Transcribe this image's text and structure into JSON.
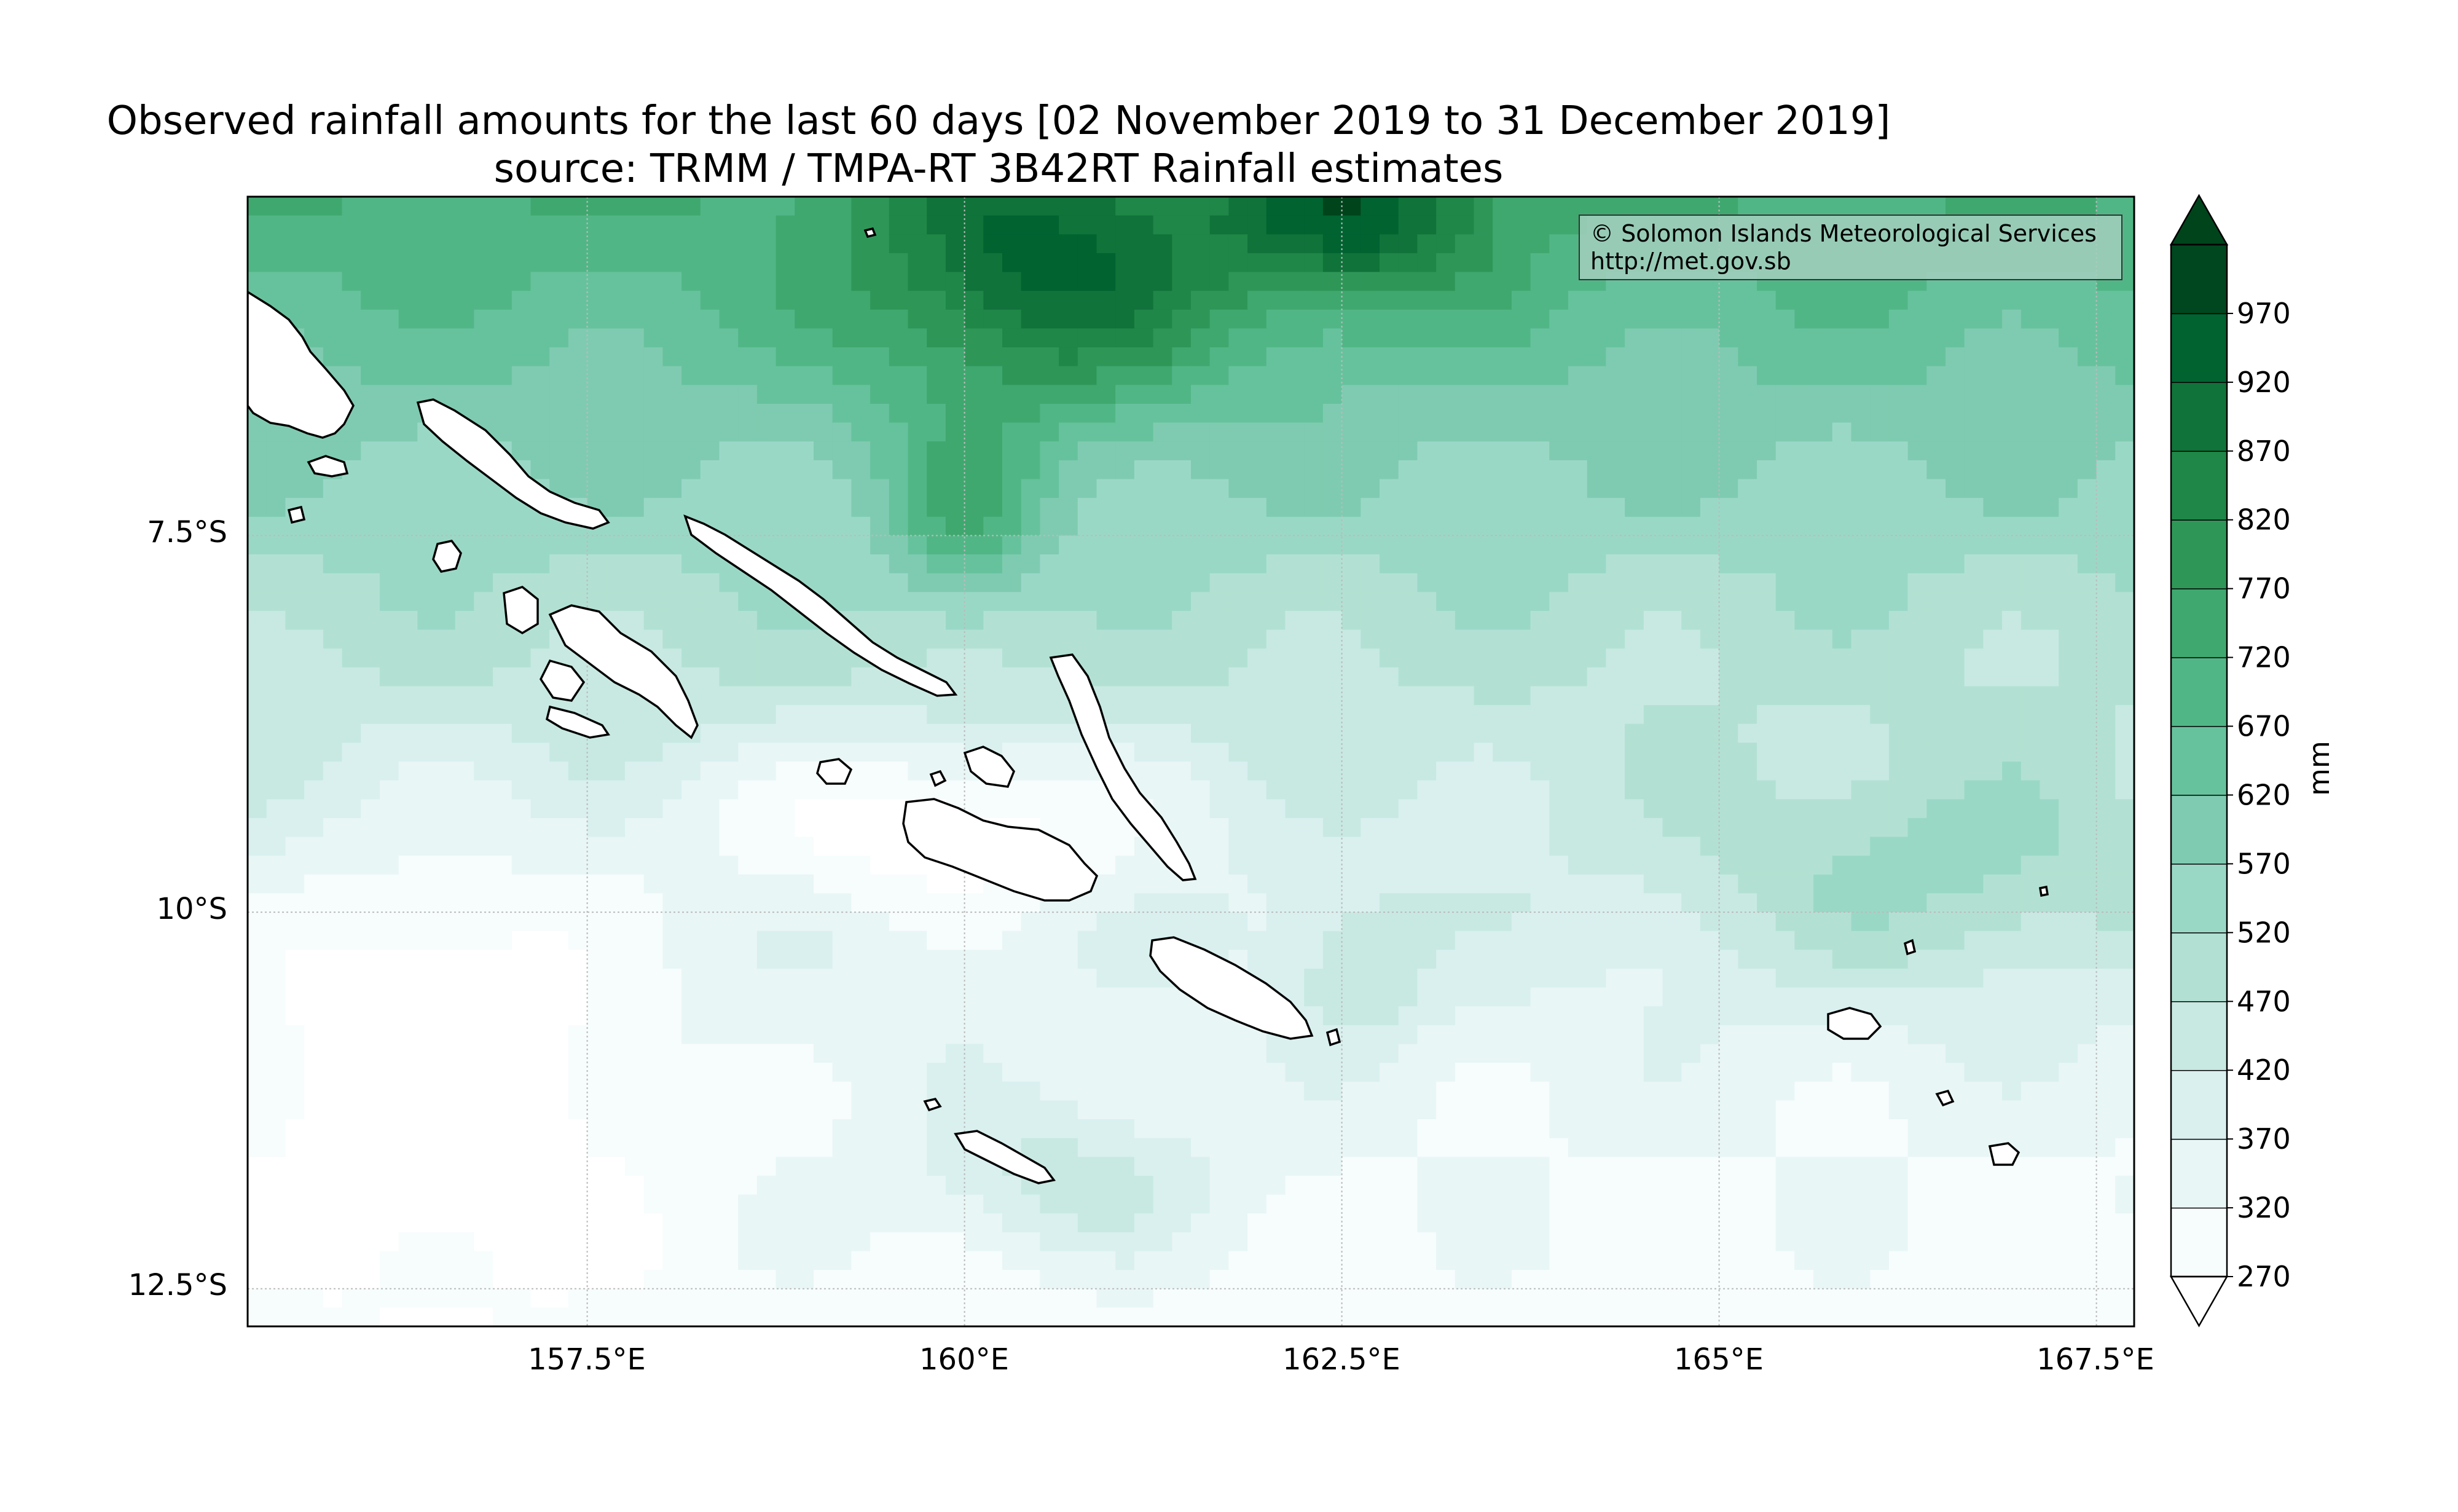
{
  "title": {
    "line1": "Observed rainfall amounts for the last 60 days [02 November 2019 to 31 December 2019]",
    "line2": "source: TRMM / TMPA-RT 3B42RT Rainfall estimates"
  },
  "credit": {
    "line1": "© Solomon Islands Meteorological Services",
    "line2": "http://met.gov.sb"
  },
  "axes": {
    "lat_ticks": [
      "7.5°S",
      "10°S",
      "12.5°S"
    ],
    "lon_ticks": [
      "157.5°E",
      "160°E",
      "162.5°E",
      "165°E",
      "167.5°E"
    ]
  },
  "colorbar": {
    "unit": "mm",
    "levels": [
      "270",
      "320",
      "370",
      "420",
      "470",
      "520",
      "570",
      "620",
      "670",
      "720",
      "770",
      "820",
      "870",
      "920",
      "970"
    ],
    "colors": [
      "#f7fcfd",
      "#e8f6f5",
      "#d9f0ef",
      "#c8e9e2",
      "#b2e1d3",
      "#9ad8c6",
      "#7fcbb1",
      "#66c29d",
      "#51b686",
      "#3fa86f",
      "#2e9758",
      "#1f8748",
      "#10733a",
      "#006330",
      "#00461f"
    ],
    "over_color": "#00441b",
    "under_color": "#ffffff"
  },
  "map": {
    "type": "filled-contour",
    "lon_range": [
      155.25,
      167.75
    ],
    "lat_range": [
      -12.75,
      -5.25
    ],
    "gridlines": true
  }
}
